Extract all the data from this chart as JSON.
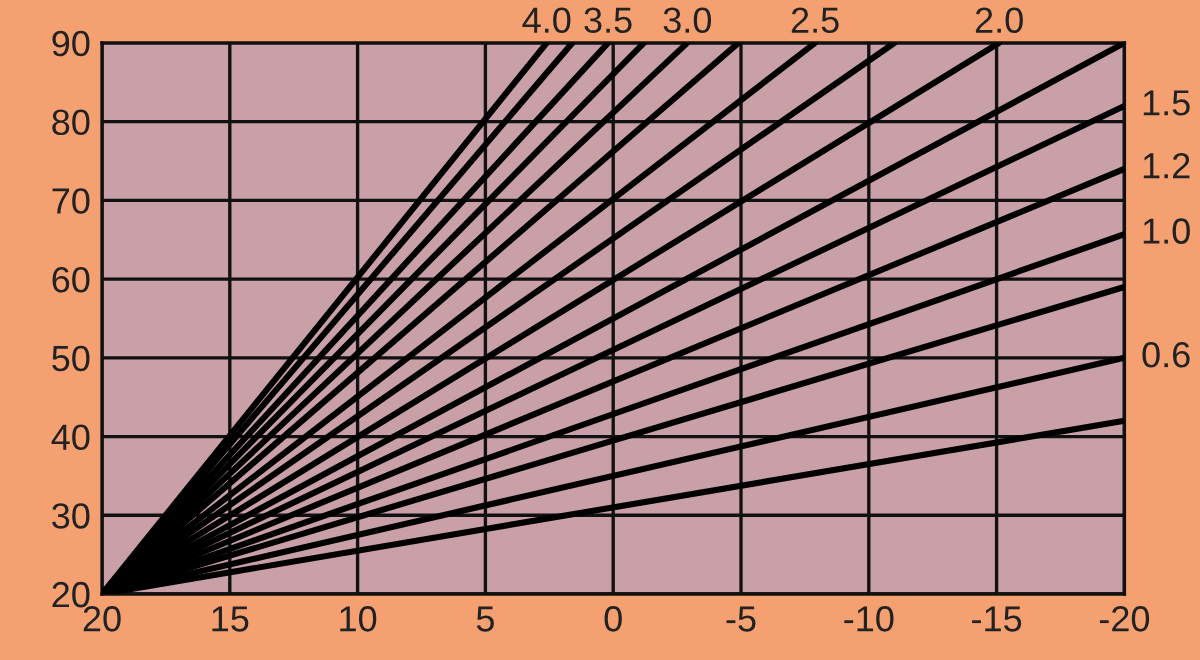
{
  "chart_data": {
    "type": "line",
    "series": [
      {
        "color": "#000000",
        "x": [
          20,
          2.6
        ],
        "values": [
          20,
          90
        ]
      },
      {
        "color": "#000000",
        "x": [
          20,
          1.6
        ],
        "values": [
          20,
          90
        ]
      },
      {
        "color": "#000000",
        "x": [
          20,
          0.2
        ],
        "values": [
          20,
          90
        ]
      },
      {
        "color": "#000000",
        "x": [
          20,
          -1.2
        ],
        "values": [
          20,
          90
        ]
      },
      {
        "color": "#000000",
        "x": [
          20,
          -2.9
        ],
        "values": [
          20,
          90
        ]
      },
      {
        "color": "#000000",
        "x": [
          20,
          -4.9
        ],
        "values": [
          20,
          90
        ]
      },
      {
        "color": "#000000",
        "x": [
          20,
          -7.9
        ],
        "values": [
          20,
          90
        ]
      },
      {
        "color": "#000000",
        "x": [
          20,
          -11
        ],
        "values": [
          20,
          90
        ]
      },
      {
        "color": "#000000",
        "x": [
          20,
          -15.1
        ],
        "values": [
          20,
          90
        ]
      },
      {
        "color": "#000000",
        "x": [
          20,
          -20
        ],
        "values": [
          20,
          90
        ]
      },
      {
        "color": "#000000",
        "x": [
          20,
          -20
        ],
        "values": [
          20,
          82
        ]
      },
      {
        "color": "#000000",
        "x": [
          20,
          -20
        ],
        "values": [
          20,
          74
        ]
      },
      {
        "color": "#000000",
        "x": [
          20,
          -20
        ],
        "values": [
          20,
          65.7
        ]
      },
      {
        "color": "#000000",
        "x": [
          20,
          -20
        ],
        "values": [
          20,
          59
        ]
      },
      {
        "color": "#000000",
        "x": [
          20,
          -20
        ],
        "values": [
          20,
          50
        ]
      },
      {
        "color": "#000000",
        "x": [
          20,
          -20
        ],
        "values": [
          20,
          42
        ]
      }
    ],
    "annotations": [
      {
        "text": "4.0",
        "x": 2.6,
        "y": 90
      },
      {
        "text": "3.5",
        "x": 0.2,
        "y": 90
      },
      {
        "text": "3.0",
        "x": -2.9,
        "y": 90
      },
      {
        "text": "2.5",
        "x": -7.9,
        "y": 90
      },
      {
        "text": "2.0",
        "x": -15.1,
        "y": 90
      },
      {
        "text": "1.5",
        "x": -20,
        "y": 82
      },
      {
        "text": "1.2",
        "x": -20,
        "y": 74
      },
      {
        "text": "1.0",
        "x": -20,
        "y": 65.7
      },
      {
        "text": "0.6",
        "x": -20,
        "y": 50
      }
    ],
    "xlim": [
      20,
      -20
    ],
    "ylim": [
      20,
      90
    ],
    "xticks": [
      20,
      15,
      10,
      5,
      0,
      -5,
      -10,
      -15,
      -20
    ],
    "yticks": [
      20,
      30,
      40,
      50,
      60,
      70,
      80,
      90
    ],
    "grid": true,
    "marker": "none",
    "line_style": "solid",
    "legend": false
  }
}
